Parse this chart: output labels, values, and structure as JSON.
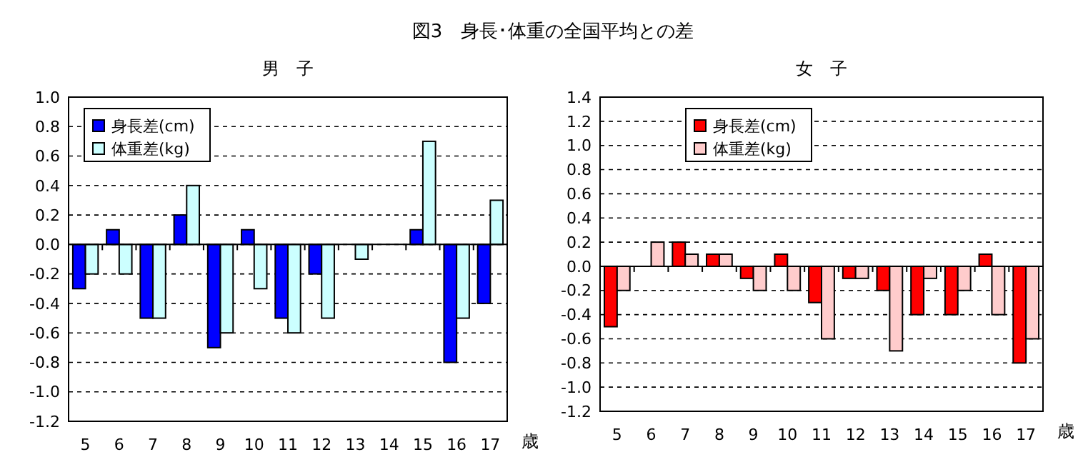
{
  "chart_data": [
    {
      "type": "bar",
      "title": "図3　身長･体重の全国平均との差",
      "subtitle": "男　子",
      "xlabel": "歳",
      "categories": [
        "5",
        "6",
        "7",
        "8",
        "9",
        "10",
        "11",
        "12",
        "13",
        "14",
        "15",
        "16",
        "17"
      ],
      "series": [
        {
          "name": "身長差(cm)",
          "color": "#0000ff",
          "values": [
            -0.3,
            0.1,
            -0.5,
            0.2,
            -0.7,
            0.1,
            -0.5,
            -0.2,
            0,
            0,
            0.1,
            -0.8,
            -0.4
          ]
        },
        {
          "name": "体重差(kg)",
          "color": "#ccffff",
          "values": [
            -0.2,
            -0.2,
            -0.5,
            0.4,
            -0.6,
            -0.3,
            -0.6,
            -0.5,
            -0.1,
            0,
            0.7,
            -0.5,
            0.3
          ]
        }
      ],
      "ylim": [
        -1.2,
        1.0
      ],
      "yticks": [
        {
          "value": -1.2,
          "label": "-1.2"
        },
        {
          "value": -1,
          "label": "-1.0"
        },
        {
          "value": -0.8,
          "label": "-0.8"
        },
        {
          "value": -0.6,
          "label": "-0.6"
        },
        {
          "value": -0.4,
          "label": "-0.4"
        },
        {
          "value": -0.2,
          "label": "-0.2"
        },
        {
          "value": 0,
          "label": "0.0"
        },
        {
          "value": 0.2,
          "label": "0.2"
        },
        {
          "value": 0.4,
          "label": "0.4"
        },
        {
          "value": 0.6,
          "label": "0.6"
        },
        {
          "value": 0.8,
          "label": "0.8"
        },
        {
          "value": 1,
          "label": "1.0"
        }
      ],
      "grid": "y",
      "legend": "top left"
    },
    {
      "type": "bar",
      "subtitle": "女　子",
      "xlabel": "歳",
      "categories": [
        "5",
        "6",
        "7",
        "8",
        "9",
        "10",
        "11",
        "12",
        "13",
        "14",
        "15",
        "16",
        "17"
      ],
      "series": [
        {
          "name": "身長差(cm)",
          "color": "#ff0000",
          "values": [
            -0.5,
            0,
            0.2,
            0.1,
            -0.1,
            0.1,
            -0.3,
            -0.1,
            -0.2,
            -0.4,
            -0.4,
            0.1,
            -0.8
          ]
        },
        {
          "name": "体重差(kg)",
          "color": "#ffcccc",
          "values": [
            -0.2,
            0.2,
            0.1,
            0.1,
            -0.2,
            -0.2,
            -0.6,
            -0.1,
            -0.7,
            -0.1,
            -0.2,
            -0.4,
            -0.6
          ]
        }
      ],
      "ylim": [
        -1.2,
        1.4
      ],
      "yticks": [
        {
          "value": -1.2,
          "label": "-1.2"
        },
        {
          "value": -1,
          "label": "-1.0"
        },
        {
          "value": -0.8,
          "label": "-0.8"
        },
        {
          "value": -0.6,
          "label": "-0.6"
        },
        {
          "value": -0.4,
          "label": "-0.4"
        },
        {
          "value": -0.2,
          "label": "-0.2"
        },
        {
          "value": 0,
          "label": "0.0"
        },
        {
          "value": 0.2,
          "label": "0.2"
        },
        {
          "value": 0.4,
          "label": "0.4"
        },
        {
          "value": 0.6,
          "label": "0.6"
        },
        {
          "value": 0.8,
          "label": "0.8"
        },
        {
          "value": 1,
          "label": "1.0"
        },
        {
          "value": 1.2,
          "label": "1.2"
        },
        {
          "value": 1.4,
          "label": "1.4"
        }
      ],
      "grid": "y",
      "legend": "top left"
    }
  ]
}
